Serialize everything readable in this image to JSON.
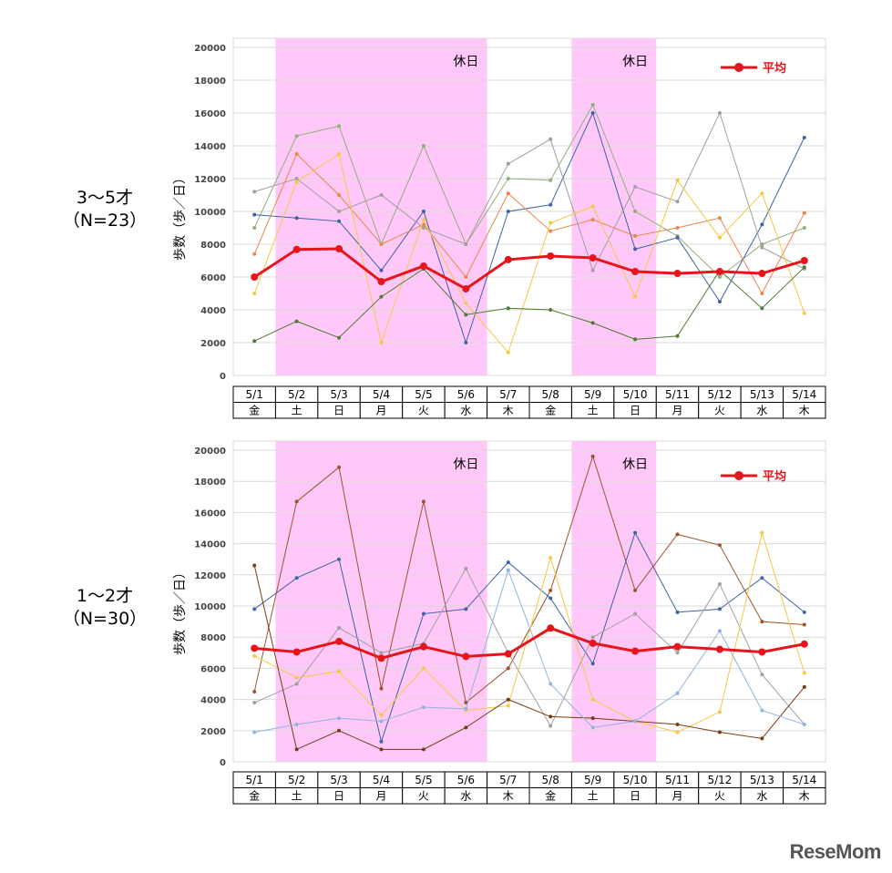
{
  "logo": "ReseMom",
  "colors": {
    "average": "#e8141c",
    "holiday": "#ffc8f8",
    "grid": "#d9d9d9"
  },
  "chart_data": [
    {
      "type": "line",
      "group_label": "3～5才",
      "n_label": "（N=23）",
      "ylabel": "歩数（歩／日）",
      "ylim": [
        0,
        20000
      ],
      "yticks": [
        "0",
        "2000",
        "4000",
        "6000",
        "8000",
        "10000",
        "12000",
        "14000",
        "16000",
        "18000",
        "20000"
      ],
      "categories": [
        "5/1",
        "5/2",
        "5/3",
        "5/4",
        "5/5",
        "5/6",
        "5/7",
        "5/8",
        "5/9",
        "5/10",
        "5/11",
        "5/12",
        "5/13",
        "5/14"
      ],
      "weekdays": [
        "金",
        "土",
        "日",
        "月",
        "火",
        "水",
        "木",
        "金",
        "土",
        "日",
        "月",
        "火",
        "水",
        "木"
      ],
      "holiday_label": "休日",
      "holidays": [
        [
          "5/2",
          "5/6"
        ],
        [
          "5/9",
          "5/10"
        ]
      ],
      "legend": "平均",
      "legend_position": "top-right",
      "grid": true,
      "average": [
        6000,
        7680,
        7720,
        5720,
        6670,
        5280,
        7060,
        7280,
        7170,
        6330,
        6220,
        6330,
        6220,
        7000
      ],
      "individuals": [
        {
          "color": "#8fb07a",
          "values": [
            9000,
            14600,
            15200,
            8000,
            14000,
            8000,
            12000,
            11900,
            16500,
            10000,
            8500,
            6000,
            8000,
            9000
          ]
        },
        {
          "color": "#3f62a8",
          "values": [
            9800,
            9600,
            9400,
            6400,
            10000,
            2000,
            10000,
            10400,
            16000,
            7700,
            8400,
            4500,
            9200,
            14500
          ]
        },
        {
          "color": "#a0a0a0",
          "values": [
            11200,
            12000,
            10000,
            11000,
            9000,
            8000,
            12900,
            14400,
            6400,
            11500,
            10600,
            16000,
            7800,
            6500
          ]
        },
        {
          "color": "#e8874a",
          "values": [
            7400,
            13500,
            11000,
            8000,
            9200,
            6000,
            11100,
            8800,
            9500,
            8500,
            9000,
            9600,
            5000,
            9900
          ]
        },
        {
          "color": "#f5c842",
          "values": [
            5000,
            11800,
            13500,
            2000,
            9500,
            4400,
            1400,
            9300,
            10300,
            4800,
            11900,
            8400,
            11100,
            3800
          ]
        },
        {
          "color": "#4f7a34",
          "values": [
            2100,
            3300,
            2300,
            4800,
            6500,
            3700,
            4100,
            4000,
            3200,
            2200,
            2400,
            6400,
            4100,
            6600
          ]
        }
      ]
    },
    {
      "type": "line",
      "group_label": "1～2才",
      "n_label": "（N=30）",
      "ylabel": "歩数（歩／日）",
      "ylim": [
        0,
        20000
      ],
      "yticks": [
        "0",
        "2000",
        "4000",
        "6000",
        "8000",
        "10000",
        "12000",
        "14000",
        "16000",
        "18000",
        "20000"
      ],
      "categories": [
        "5/1",
        "5/2",
        "5/3",
        "5/4",
        "5/5",
        "5/6",
        "5/7",
        "5/8",
        "5/9",
        "5/10",
        "5/11",
        "5/12",
        "5/13",
        "5/14"
      ],
      "weekdays": [
        "金",
        "土",
        "日",
        "月",
        "火",
        "水",
        "木",
        "金",
        "土",
        "日",
        "月",
        "火",
        "水",
        "木"
      ],
      "holiday_label": "休日",
      "holidays": [
        [
          "5/2",
          "5/6"
        ],
        [
          "5/9",
          "5/10"
        ]
      ],
      "legend": "平均",
      "legend_position": "top-right",
      "grid": true,
      "average": [
        7290,
        7050,
        7730,
        6650,
        7390,
        6760,
        6930,
        8580,
        7610,
        7100,
        7390,
        7220,
        7050,
        7560
      ],
      "individuals": [
        {
          "color": "#a0522d",
          "values": [
            4500,
            16700,
            18900,
            4700,
            16700,
            3800,
            6000,
            11000,
            19600,
            11000,
            14600,
            13900,
            9000,
            8800
          ]
        },
        {
          "color": "#3f62a8",
          "values": [
            9800,
            11800,
            13000,
            1300,
            9500,
            9800,
            12800,
            10500,
            6300,
            14700,
            9600,
            9800,
            11800,
            9600
          ]
        },
        {
          "color": "#a0a0a0",
          "values": [
            3800,
            5000,
            8600,
            7000,
            7600,
            12400,
            7000,
            2300,
            8000,
            9500,
            7000,
            11400,
            5600,
            2400
          ]
        },
        {
          "color": "#f5c842",
          "values": [
            6800,
            5400,
            5800,
            3000,
            6000,
            3300,
            3600,
            13100,
            4000,
            2600,
            1900,
            3200,
            14700,
            5700
          ]
        },
        {
          "color": "#7a3b14",
          "values": [
            12600,
            800,
            2000,
            800,
            800,
            2200,
            4000,
            2900,
            2800,
            2600,
            2400,
            1900,
            1500,
            4800
          ]
        },
        {
          "color": "#8fb4de",
          "values": [
            1900,
            2400,
            2800,
            2600,
            3500,
            3400,
            12300,
            5000,
            2200,
            2600,
            4400,
            8400,
            3300,
            2400
          ]
        }
      ]
    }
  ]
}
